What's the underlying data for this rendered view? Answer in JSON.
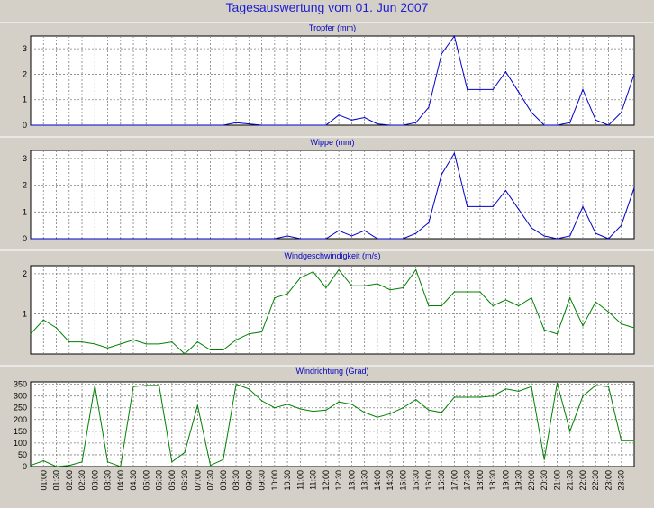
{
  "title": "Tagesauswertung vom 01. Jun 2007",
  "colors": {
    "background": "#d4d0c8",
    "plot_area": "#ffffff",
    "blue_series": "#0000c8",
    "green_series": "#008000",
    "title": "#1f1fd0"
  },
  "x_ticks": [
    "01:00",
    "01:30",
    "02:00",
    "02:30",
    "03:00",
    "03:30",
    "04:00",
    "04:30",
    "05:00",
    "05:30",
    "06:00",
    "06:30",
    "07:00",
    "07:30",
    "08:00",
    "08:30",
    "09:00",
    "09:30",
    "10:00",
    "10:30",
    "11:00",
    "11:30",
    "12:00",
    "12:30",
    "13:00",
    "13:30",
    "14:00",
    "14:30",
    "15:00",
    "15:30",
    "16:00",
    "16:30",
    "17:00",
    "17:30",
    "18:00",
    "18:30",
    "19:00",
    "19:30",
    "20:00",
    "20:30",
    "21:00",
    "21:30",
    "22:00",
    "22:30",
    "23:00",
    "23:30"
  ],
  "chart_data": [
    {
      "type": "line",
      "title": "Tropfer (mm)",
      "grid": true,
      "ylim": [
        0,
        3.5
      ],
      "yticks": [
        0,
        1,
        2,
        3
      ],
      "series": [
        {
          "color": "#0000c8",
          "x": [
            "00:30",
            "01:00",
            "01:30",
            "02:00",
            "02:30",
            "03:00",
            "03:30",
            "04:00",
            "04:30",
            "05:00",
            "05:30",
            "06:00",
            "06:30",
            "07:00",
            "07:30",
            "08:00",
            "08:30",
            "09:00",
            "09:30",
            "10:00",
            "10:30",
            "11:00",
            "11:30",
            "12:00",
            "12:30",
            "13:00",
            "13:30",
            "14:00",
            "14:30",
            "15:00",
            "15:30",
            "16:00",
            "16:30",
            "17:00",
            "17:30",
            "18:00",
            "18:30",
            "19:00",
            "19:30",
            "20:00",
            "20:30",
            "21:00",
            "21:30",
            "22:00",
            "22:30",
            "23:00",
            "23:30",
            "24:00"
          ],
          "values": [
            0,
            0,
            0,
            0,
            0,
            0,
            0,
            0,
            0,
            0,
            0,
            0,
            0,
            0,
            0,
            0,
            0.1,
            0.05,
            0,
            0,
            0,
            0,
            0,
            0,
            0.4,
            0.2,
            0.3,
            0.05,
            0,
            0,
            0.1,
            0.7,
            2.8,
            3.5,
            1.4,
            1.4,
            1.4,
            2.1,
            1.3,
            0.5,
            0,
            0,
            0.1,
            1.4,
            0.2,
            0,
            0.5,
            2.0
          ]
        }
      ]
    },
    {
      "type": "line",
      "title": "Wippe (mm)",
      "grid": true,
      "ylim": [
        0,
        3.3
      ],
      "yticks": [
        0,
        1,
        2,
        3
      ],
      "series": [
        {
          "color": "#0000c8",
          "x": [
            "00:30",
            "01:00",
            "01:30",
            "02:00",
            "02:30",
            "03:00",
            "03:30",
            "04:00",
            "04:30",
            "05:00",
            "05:30",
            "06:00",
            "06:30",
            "07:00",
            "07:30",
            "08:00",
            "08:30",
            "09:00",
            "09:30",
            "10:00",
            "10:30",
            "11:00",
            "11:30",
            "12:00",
            "12:30",
            "13:00",
            "13:30",
            "14:00",
            "14:30",
            "15:00",
            "15:30",
            "16:00",
            "16:30",
            "17:00",
            "17:30",
            "18:00",
            "18:30",
            "19:00",
            "19:30",
            "20:00",
            "20:30",
            "21:00",
            "21:30",
            "22:00",
            "22:30",
            "23:00",
            "23:30",
            "24:00"
          ],
          "values": [
            0,
            0,
            0,
            0,
            0,
            0,
            0,
            0,
            0,
            0,
            0,
            0,
            0,
            0,
            0,
            0,
            0,
            0,
            0,
            0,
            0.1,
            0,
            0,
            0,
            0.3,
            0.1,
            0.3,
            0,
            0,
            0,
            0.2,
            0.6,
            2.4,
            3.2,
            1.2,
            1.2,
            1.2,
            1.8,
            1.1,
            0.4,
            0.1,
            0,
            0.1,
            1.2,
            0.2,
            0,
            0.5,
            1.9
          ]
        }
      ]
    },
    {
      "type": "line",
      "title": "Windgeschwindigkeit (m/s)",
      "grid": true,
      "ylim": [
        0,
        2.2
      ],
      "yticks": [
        1,
        2
      ],
      "series": [
        {
          "color": "#008000",
          "x": [
            "00:30",
            "01:00",
            "01:30",
            "02:00",
            "02:30",
            "03:00",
            "03:30",
            "04:00",
            "04:30",
            "05:00",
            "05:30",
            "06:00",
            "06:30",
            "07:00",
            "07:30",
            "08:00",
            "08:30",
            "09:00",
            "09:30",
            "10:00",
            "10:30",
            "11:00",
            "11:30",
            "12:00",
            "12:30",
            "13:00",
            "13:30",
            "14:00",
            "14:30",
            "15:00",
            "15:30",
            "16:00",
            "16:30",
            "17:00",
            "17:30",
            "18:00",
            "18:30",
            "19:00",
            "19:30",
            "20:00",
            "20:30",
            "21:00",
            "21:30",
            "22:00",
            "22:30",
            "23:00",
            "23:30",
            "24:00"
          ],
          "values": [
            0.5,
            0.85,
            0.65,
            0.3,
            0.3,
            0.25,
            0.15,
            0.25,
            0.35,
            0.25,
            0.25,
            0.3,
            0.0,
            0.3,
            0.1,
            0.1,
            0.35,
            0.5,
            0.55,
            1.4,
            1.5,
            1.9,
            2.05,
            1.65,
            2.1,
            1.7,
            1.7,
            1.75,
            1.6,
            1.65,
            2.1,
            1.2,
            1.2,
            1.55,
            1.55,
            1.55,
            1.2,
            1.35,
            1.2,
            1.4,
            0.6,
            0.5,
            1.4,
            0.7,
            1.3,
            1.05,
            0.75,
            0.65
          ]
        }
      ]
    },
    {
      "type": "line",
      "title": "Windrichtung (Grad)",
      "grid": true,
      "ylim": [
        0,
        360
      ],
      "yticks": [
        0,
        50,
        100,
        150,
        200,
        250,
        300,
        350
      ],
      "series": [
        {
          "color": "#008000",
          "x": [
            "00:30",
            "01:00",
            "01:30",
            "02:00",
            "02:30",
            "03:00",
            "03:30",
            "04:00",
            "04:30",
            "05:00",
            "05:30",
            "06:00",
            "06:30",
            "07:00",
            "07:30",
            "08:00",
            "08:30",
            "09:00",
            "09:30",
            "10:00",
            "10:30",
            "11:00",
            "11:30",
            "12:00",
            "12:30",
            "13:00",
            "13:30",
            "14:00",
            "14:30",
            "15:00",
            "15:30",
            "16:00",
            "16:30",
            "17:00",
            "17:30",
            "18:00",
            "18:30",
            "19:00",
            "19:30",
            "20:00",
            "20:30",
            "21:00",
            "21:30",
            "22:00",
            "22:30",
            "23:00",
            "23:30",
            "24:00"
          ],
          "values": [
            5,
            25,
            0,
            5,
            20,
            345,
            20,
            0,
            340,
            345,
            345,
            20,
            60,
            260,
            5,
            30,
            350,
            330,
            280,
            250,
            265,
            245,
            235,
            240,
            275,
            265,
            230,
            210,
            225,
            250,
            285,
            240,
            230,
            295,
            295,
            295,
            300,
            330,
            320,
            340,
            30,
            355,
            150,
            300,
            345,
            340,
            110,
            110
          ]
        }
      ]
    }
  ]
}
